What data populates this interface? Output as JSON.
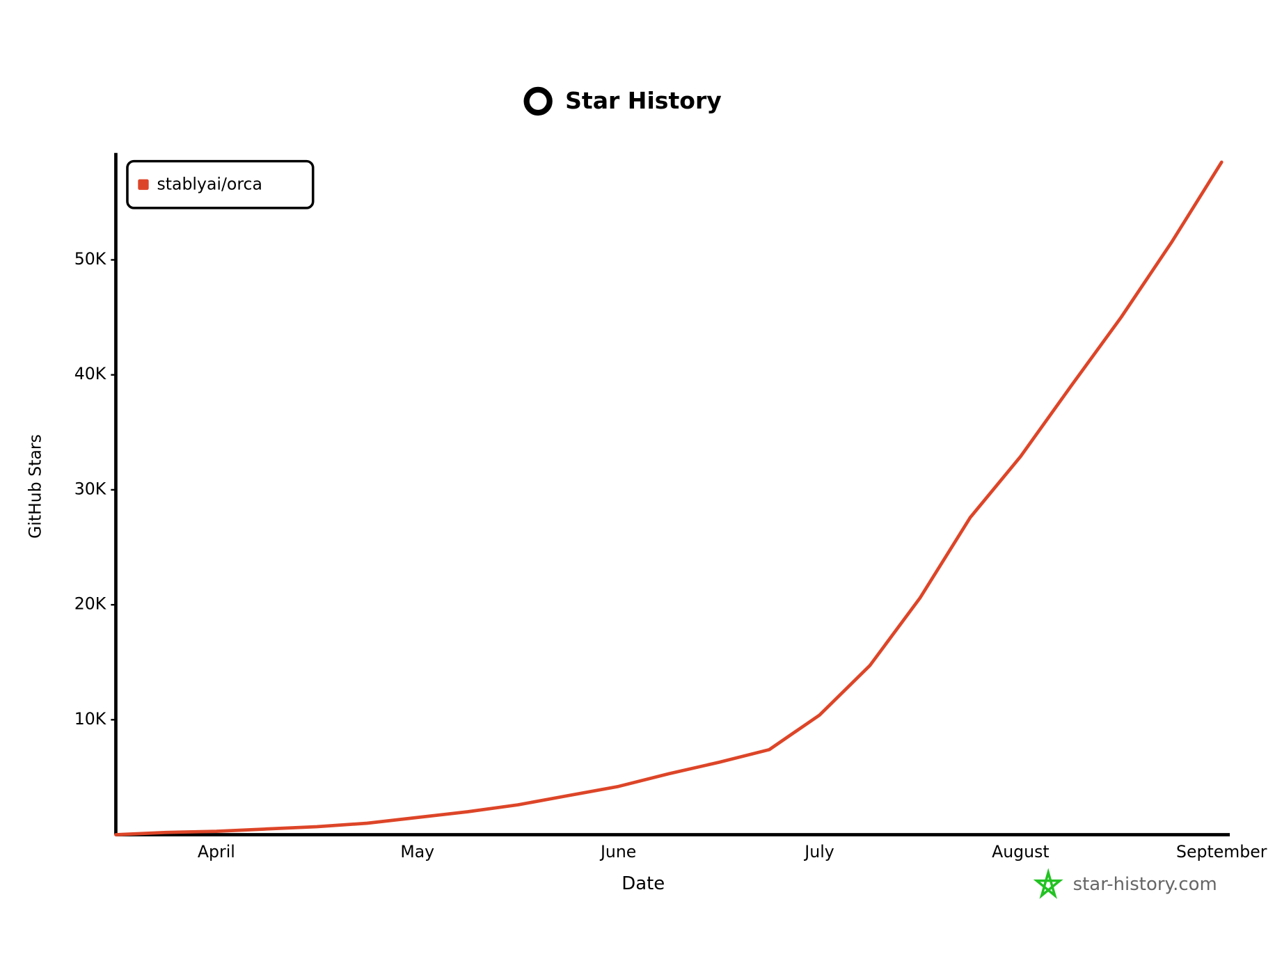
{
  "chart_data": {
    "type": "line",
    "title": "Star History",
    "x_label": "Date",
    "y_label": "GitHub Stars",
    "watermark": "star-history.com",
    "categories": [
      null,
      null,
      "April",
      null,
      null,
      null,
      "May",
      null,
      null,
      null,
      "June",
      null,
      null,
      null,
      "July",
      null,
      null,
      null,
      "August",
      null,
      null,
      null,
      "September"
    ],
    "series": [
      {
        "name": "stablyai/orca",
        "color": "#dd4528",
        "values": [
          0,
          200,
          300,
          500,
          700,
          1000,
          1500,
          2000,
          2600,
          3400,
          4200,
          5300,
          6300,
          7400,
          10400,
          14700,
          20600,
          27600,
          32900,
          39000,
          45000,
          51500,
          58500
        ]
      }
    ],
    "ylim": [
      0,
      59300
    ],
    "yticks": [
      {
        "value": 10000,
        "label": "10K"
      },
      {
        "value": 20000,
        "label": "20K"
      },
      {
        "value": 30000,
        "label": "30K"
      },
      {
        "value": 40000,
        "label": "40K"
      },
      {
        "value": 50000,
        "label": "50K"
      }
    ],
    "legend": "top-left"
  }
}
